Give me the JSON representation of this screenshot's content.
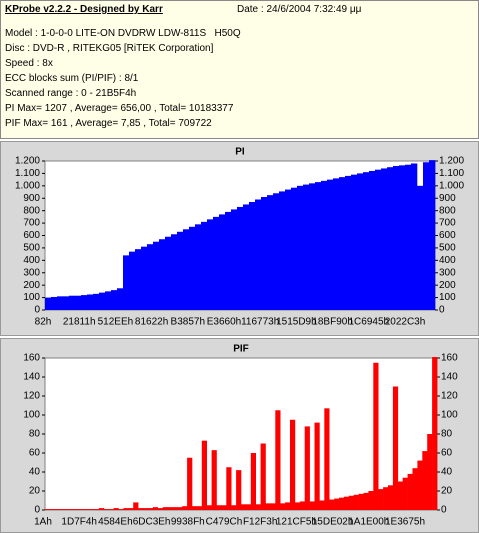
{
  "header": {
    "title": "KProbe v2.2.2 - Designed by Karr",
    "date": "Date : 24/6/2004 7:32:49 μμ",
    "lines": [
      "Model : 1-0-0-0 LITE-ON DVDRW LDW-811S   H50Q",
      "Disc : DVD-R , RITEKG05 [RiTEK Corporation]",
      "Speed : 8x",
      "ECC blocks sum (PI/PIF) : 8/1",
      "Scanned range : 0 - 21B5F4h",
      "PI Max= 1207 , Average= 656,00 , Total= 10183377",
      "PIF Max= 161 , Average= 7,85 , Total= 709722"
    ]
  },
  "chart_data": [
    {
      "type": "bar",
      "title": "PI",
      "color": "#0000ff",
      "right_axis": true,
      "xtick_labels": [
        "82h",
        "21811h",
        "512EEh",
        "81622h",
        "B3857h",
        "E3660h",
        "116773h",
        "1515D9h",
        "18BF90h",
        "1C6945h",
        "2022C3h"
      ],
      "values": [
        100,
        105,
        110,
        110,
        115,
        115,
        120,
        125,
        130,
        140,
        150,
        160,
        175,
        440,
        470,
        490,
        510,
        530,
        550,
        570,
        590,
        610,
        630,
        650,
        670,
        690,
        710,
        730,
        750,
        770,
        790,
        810,
        830,
        850,
        870,
        890,
        910,
        925,
        940,
        955,
        970,
        985,
        1000,
        1010,
        1020,
        1030,
        1040,
        1050,
        1060,
        1070,
        1080,
        1090,
        1100,
        1110,
        1120,
        1130,
        1140,
        1150,
        1160,
        1165,
        1170,
        1180,
        1000,
        1190,
        1207
      ],
      "ylim": [
        0,
        1200
      ],
      "yticks": [
        0,
        100,
        200,
        300,
        400,
        500,
        600,
        700,
        800,
        900,
        {
          "value": 1000,
          "label": "1.000"
        },
        {
          "value": 1100,
          "label": "1.100"
        },
        {
          "value": 1200,
          "label": "1.200"
        }
      ]
    },
    {
      "type": "bar",
      "title": "PIF",
      "color": "#ff0000",
      "right_axis": true,
      "xtick_labels": [
        "1Ah",
        "1D7F4h",
        "4584Eh",
        "6DC3Eh",
        "9938Fh",
        "C479Ch",
        "F12F3h",
        "121CF5h",
        "15DE02h",
        "1A1E00h",
        "1E3675h"
      ],
      "values": [
        1,
        1,
        1,
        1,
        1,
        1,
        1,
        1,
        1,
        1,
        1,
        2,
        1,
        1,
        2,
        1,
        2,
        2,
        8,
        2,
        2,
        2,
        3,
        2,
        3,
        3,
        3,
        3,
        4,
        55,
        4,
        4,
        73,
        5,
        63,
        5,
        5,
        45,
        5,
        42,
        6,
        6,
        60,
        6,
        70,
        7,
        7,
        105,
        7,
        8,
        95,
        8,
        9,
        88,
        9,
        92,
        10,
        107,
        11,
        12,
        13,
        14,
        15,
        16,
        17,
        18,
        20,
        155,
        22,
        24,
        26,
        130,
        30,
        34,
        38,
        44,
        52,
        62,
        80,
        161
      ],
      "ylim": [
        0,
        160
      ],
      "yticks": [
        0,
        20,
        40,
        60,
        80,
        100,
        120,
        140,
        160
      ]
    }
  ]
}
